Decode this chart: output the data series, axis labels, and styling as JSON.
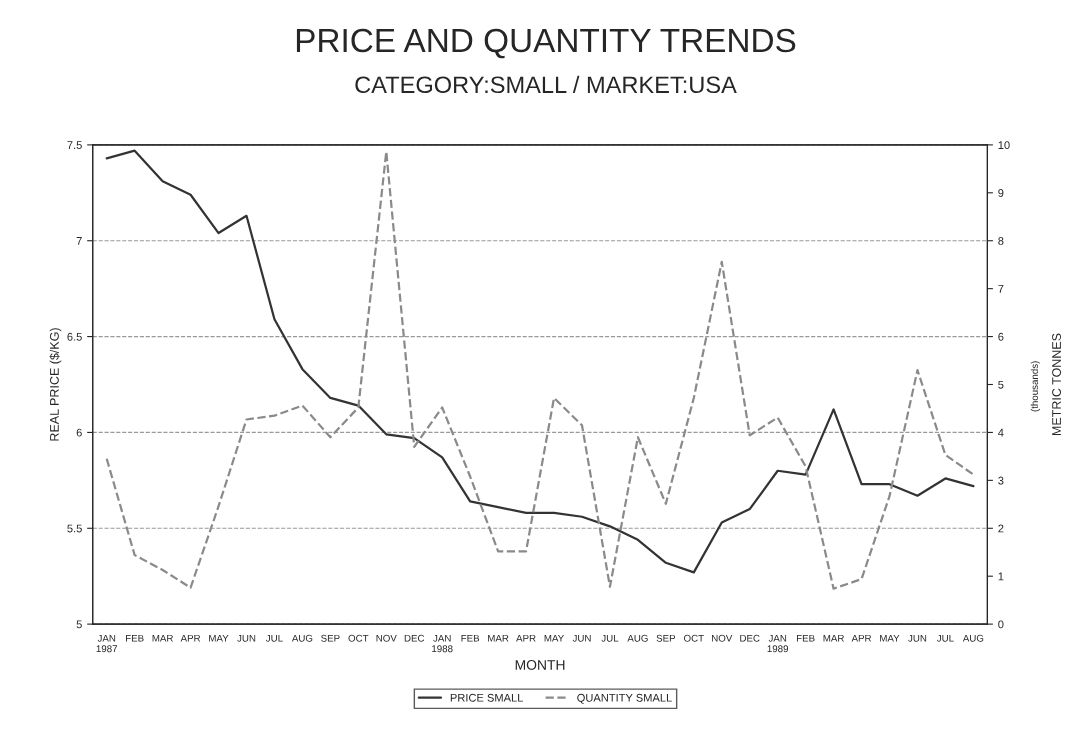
{
  "chart_data": {
    "type": "line",
    "title": "PRICE AND QUANTITY TRENDS",
    "subtitle": "CATEGORY:SMALL / MARKET:USA",
    "xlabel": "MONTH",
    "ylabel": "REAL PRICE ($/KG)",
    "y2label": "METRIC TONNES",
    "annotations": [
      "(thousands)"
    ],
    "categories": [
      "JAN\n1987",
      "FEB",
      "MAR",
      "APR",
      "MAY",
      "JUN",
      "JUL",
      "AUG",
      "SEP",
      "OCT",
      "NOV",
      "DEC",
      "JAN\n1988",
      "FEB",
      "MAR",
      "APR",
      "MAY",
      "JUN",
      "JUL",
      "AUG",
      "SEP",
      "OCT",
      "NOV",
      "DEC",
      "JAN\n1989",
      "FEB",
      "MAR",
      "APR",
      "MAY",
      "JUN",
      "JUL",
      "AUG"
    ],
    "series": [
      {
        "name": "PRICE SMALL",
        "color": "#333333",
        "line_style": "solid",
        "values": [
          7.43,
          7.47,
          7.31,
          7.24,
          7.04,
          7.13,
          6.59,
          6.33,
          6.18,
          6.14,
          5.99,
          5.97,
          5.87,
          5.64,
          5.61,
          5.58,
          5.58,
          5.56,
          5.51,
          5.44,
          5.32,
          5.27,
          5.53,
          5.6,
          5.8,
          5.78,
          6.12,
          5.73,
          5.73,
          5.67,
          5.76,
          5.72
        ]
      },
      {
        "name": "QUANTITY SMALL",
        "color": "#8a8a8a",
        "line_style": "dashed",
        "axis": "y2",
        "values": [
          3.45,
          1.44,
          1.13,
          0.76,
          2.46,
          4.27,
          4.35,
          4.56,
          3.9,
          4.52,
          9.86,
          3.7,
          4.52,
          3.08,
          1.52,
          1.52,
          4.72,
          4.15,
          0.78,
          3.9,
          2.51,
          4.72,
          7.56,
          3.94,
          4.31,
          3.29,
          0.74,
          0.94,
          2.67,
          5.3,
          3.53,
          3.12
        ]
      }
    ],
    "ylim": [
      5,
      7.5
    ],
    "yticks": [
      5,
      5.5,
      6,
      6.5,
      7,
      7.5
    ],
    "y2lim": [
      0,
      10
    ],
    "y2ticks": [
      0,
      1,
      2,
      3,
      4,
      5,
      6,
      7,
      8,
      9,
      10
    ],
    "grid": "y",
    "legend": "bottom"
  }
}
